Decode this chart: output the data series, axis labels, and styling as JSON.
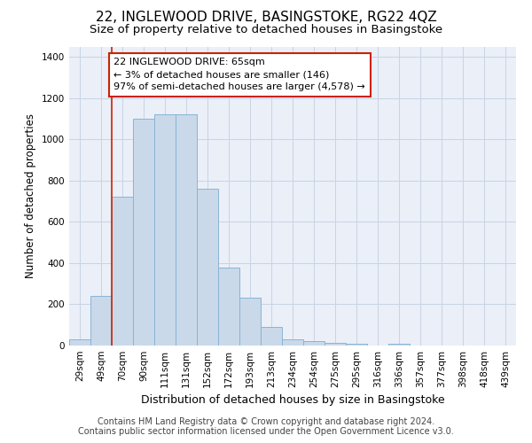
{
  "title": "22, INGLEWOOD DRIVE, BASINGSTOKE, RG22 4QZ",
  "subtitle": "Size of property relative to detached houses in Basingstoke",
  "xlabel": "Distribution of detached houses by size in Basingstoke",
  "ylabel": "Number of detached properties",
  "footer_line1": "Contains HM Land Registry data © Crown copyright and database right 2024.",
  "footer_line2": "Contains public sector information licensed under the Open Government Licence v3.0.",
  "bar_labels": [
    "29sqm",
    "49sqm",
    "70sqm",
    "90sqm",
    "111sqm",
    "131sqm",
    "152sqm",
    "172sqm",
    "193sqm",
    "213sqm",
    "234sqm",
    "254sqm",
    "275sqm",
    "295sqm",
    "316sqm",
    "336sqm",
    "357sqm",
    "377sqm",
    "398sqm",
    "418sqm",
    "439sqm"
  ],
  "bar_values": [
    30,
    240,
    720,
    1100,
    1120,
    1120,
    760,
    380,
    230,
    90,
    30,
    20,
    15,
    10,
    0,
    10,
    0,
    0,
    0,
    0,
    0
  ],
  "bar_color": "#c9d9ea",
  "bar_edge_color": "#8ab4d4",
  "bar_edge_width": 0.7,
  "vline_color": "#cc2200",
  "vline_linewidth": 1.2,
  "vline_xindex": 2,
  "annotation_text": "22 INGLEWOOD DRIVE: 65sqm\n← 3% of detached houses are smaller (146)\n97% of semi-detached houses are larger (4,578) →",
  "annotation_box_color": "white",
  "annotation_box_edge_color": "#cc2200",
  "ylim": [
    0,
    1450
  ],
  "yticks": [
    0,
    200,
    400,
    600,
    800,
    1000,
    1200,
    1400
  ],
  "grid_color": "#c8d4e4",
  "bg_color": "#eaeff8",
  "title_fontsize": 11,
  "subtitle_fontsize": 9.5,
  "tick_fontsize": 7.5,
  "ylabel_fontsize": 8.5,
  "xlabel_fontsize": 9,
  "annot_fontsize": 8,
  "footer_fontsize": 7
}
